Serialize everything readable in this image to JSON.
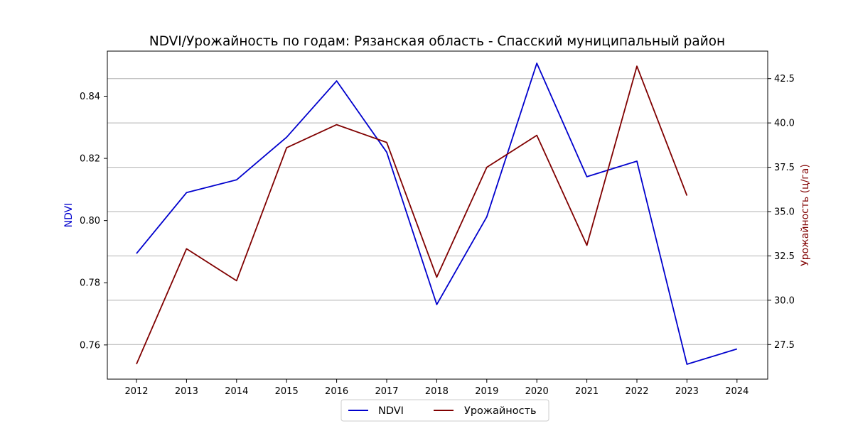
{
  "chart_data": {
    "type": "line",
    "title": "NDVI/Урожайность по годам: Рязанская область - Спасский муниципальный район",
    "categories": [
      "2012",
      "2013",
      "2014",
      "2015",
      "2016",
      "2017",
      "2018",
      "2019",
      "2020",
      "2021",
      "2022",
      "2023",
      "2024"
    ],
    "series": [
      {
        "name": "NDVI",
        "axis": "left",
        "color": "#0000cd",
        "values": [
          0.7894,
          0.809,
          0.8131,
          0.8268,
          0.8449,
          0.822,
          0.773,
          0.8012,
          0.8506,
          0.8141,
          0.8191,
          0.7538,
          0.7587
        ]
      },
      {
        "name": "Урожайность",
        "axis": "right",
        "color": "#800000",
        "values": [
          26.4,
          32.9,
          31.1,
          38.6,
          39.9,
          38.9,
          31.3,
          37.5,
          39.3,
          33.1,
          43.2,
          35.9,
          null
        ]
      }
    ],
    "y_left": {
      "label": "NDVI",
      "color": "#0000cd",
      "range": [
        0.749,
        0.8545
      ],
      "ticks": [
        0.76,
        0.78,
        0.8,
        0.82,
        0.84
      ],
      "tick_labels": [
        "0.76",
        "0.78",
        "0.80",
        "0.82",
        "0.84"
      ]
    },
    "y_right": {
      "label": "Урожайность (ц/га)",
      "color": "#800000",
      "range": [
        25.55,
        44.05
      ],
      "ticks": [
        27.5,
        30.0,
        32.5,
        35.0,
        37.5,
        40.0,
        42.5
      ],
      "tick_labels": [
        "27.5",
        "30.0",
        "32.5",
        "35.0",
        "37.5",
        "40.0",
        "42.5"
      ]
    },
    "grid": "horizontal, right-axis ticks",
    "legend": {
      "position": "bottom-center",
      "entries": [
        "NDVI",
        "Урожайность"
      ]
    }
  }
}
